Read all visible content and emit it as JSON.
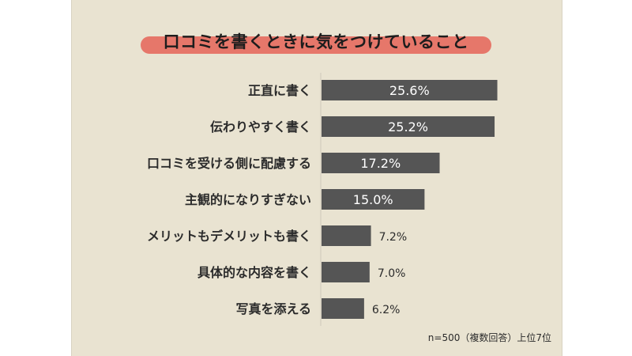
{
  "chart_data": {
    "type": "bar",
    "orientation": "horizontal",
    "title": "口コミを書くときに気をつけていること",
    "categories": [
      "正直に書く",
      "伝わりやすく書く",
      "口コミを受ける側に配慮する",
      "主観的になりすぎない",
      "メリットもデメリットも書く",
      "具体的な内容を書く",
      "写真を添える"
    ],
    "values": [
      25.6,
      25.2,
      17.2,
      15.0,
      7.2,
      7.0,
      6.2
    ],
    "value_labels": [
      "25.6%",
      "25.2%",
      "17.2%",
      "15.0%",
      "7.2%",
      "7.0%",
      "6.2%"
    ],
    "xlim": [
      0,
      26
    ],
    "grid": false,
    "colors": {
      "bar": "#555555",
      "highlight": "#e6776a",
      "background": "#e9e3d1"
    }
  },
  "footnote": "n=500（複数回答）上位7位"
}
